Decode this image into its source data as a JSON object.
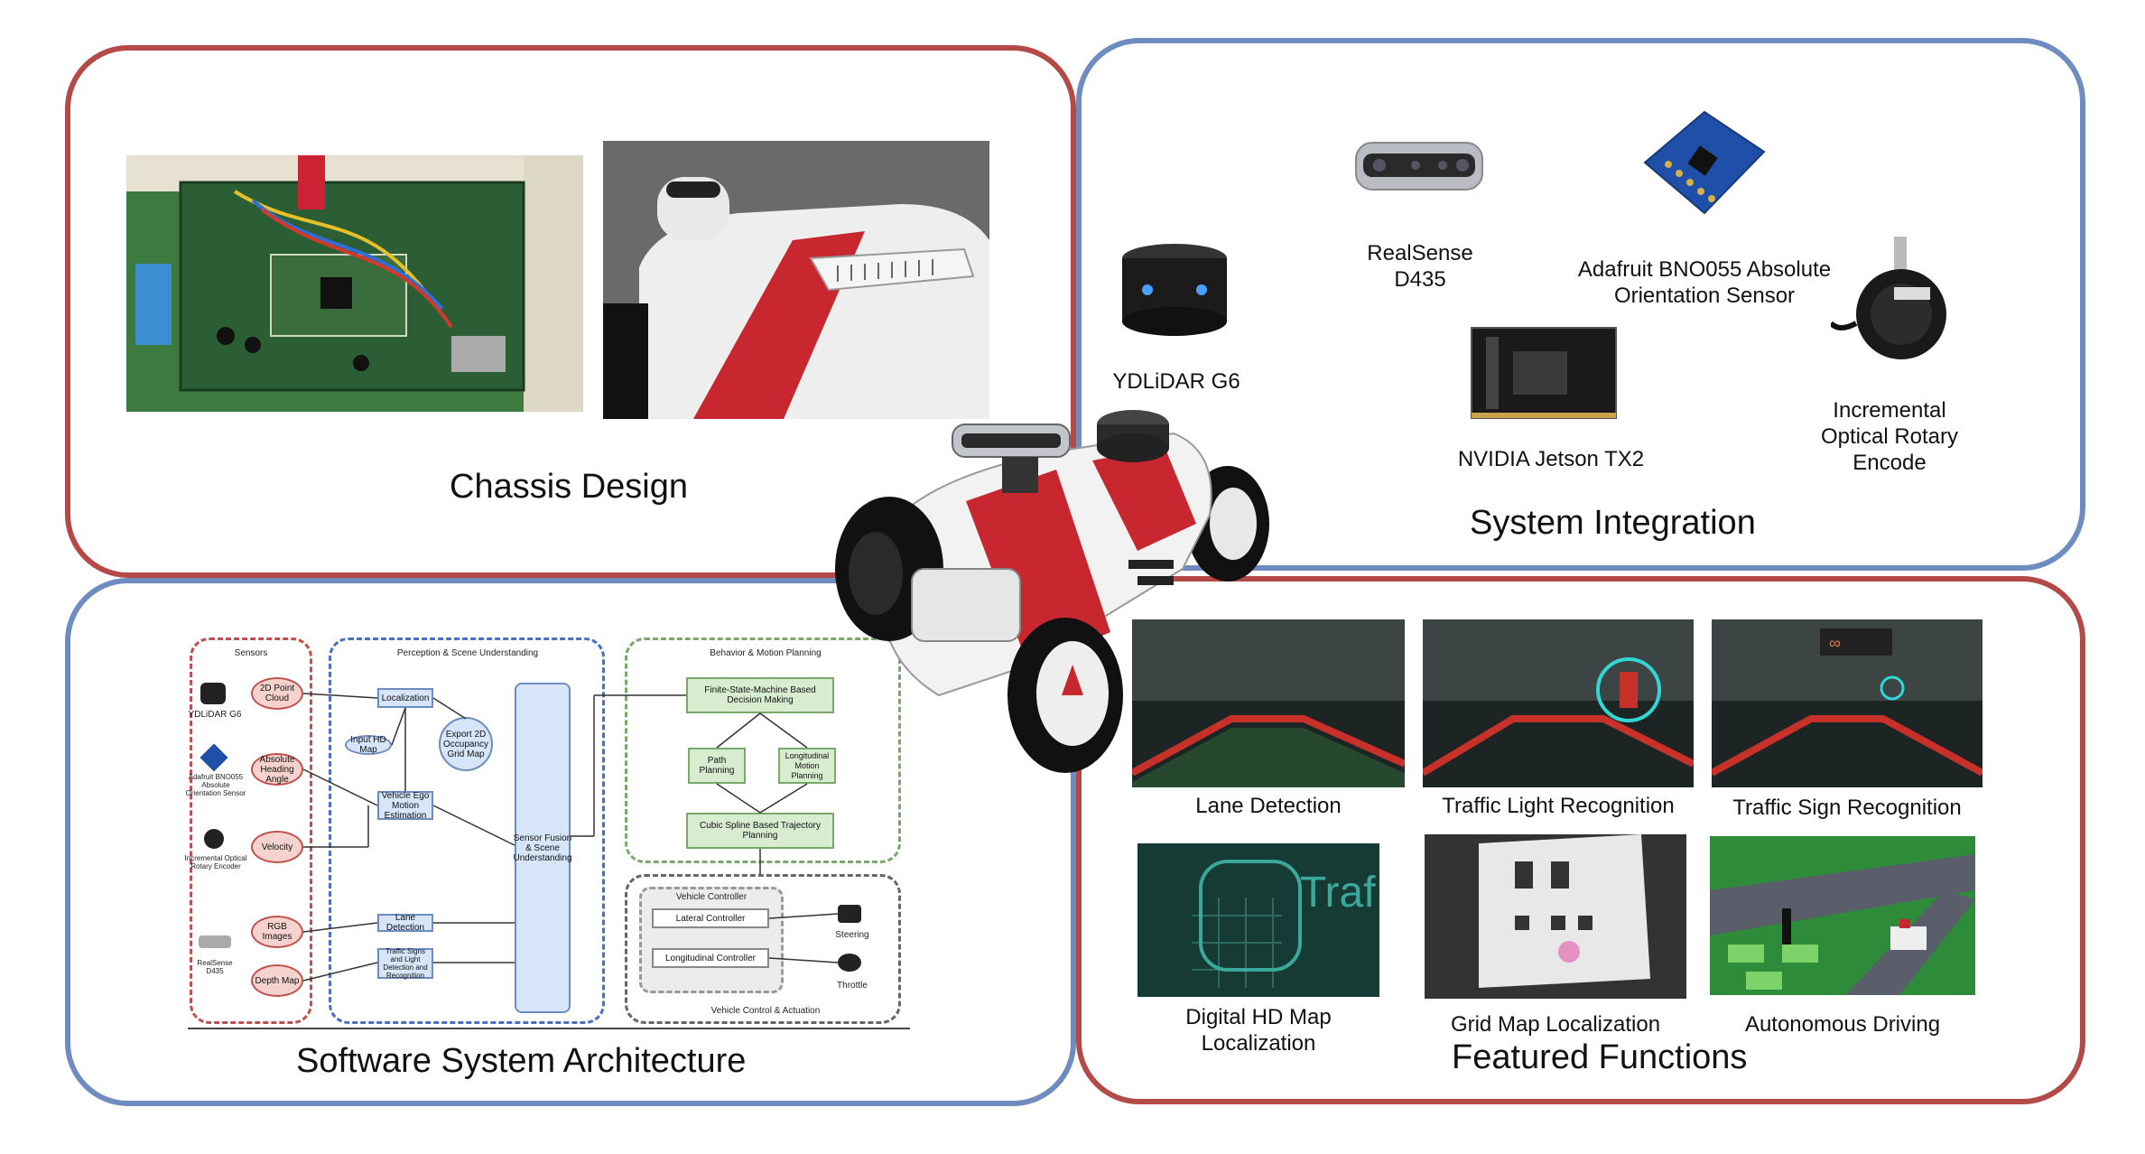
{
  "panels": {
    "chassis": {
      "title": "Chassis Design"
    },
    "system": {
      "title": "System Integration",
      "components": [
        {
          "name": "YDLiDAR G6"
        },
        {
          "name": "RealSense\nD435"
        },
        {
          "name": "Adafruit BNO055 Absolute\nOrientation Sensor"
        },
        {
          "name": "NVIDIA Jetson TX2"
        },
        {
          "name": "Incremental\nOptical Rotary\nEncode"
        }
      ]
    },
    "software": {
      "title": "Software System Architecture",
      "groups": {
        "sensors": "Sensors",
        "perception": "Perception & Scene Understanding",
        "behavior": "Behavior & Motion Planning",
        "control": "Vehicle Control & Actuation"
      },
      "sensor_items": [
        "YDLiDAR G6",
        "Adafruit BNO055 Absolute Orientation Sensor",
        "Incremental Optical Rotary Encoder",
        "RealSense D435"
      ],
      "sensor_data": [
        "2D Point Cloud",
        "Absolute Heading Angle",
        "Velocity",
        "RGB Images",
        "Depth Map"
      ],
      "perception_nodes": [
        "Localization",
        "Input HD Map",
        "Vehicle Ego Motion Estimation",
        "Export 2D Occupancy Grid Map",
        "Lane Detection",
        "Traffic Signs and Light Detection and Recognition",
        "Sensor Fusion & Scene Understanding"
      ],
      "behavior_nodes": [
        "Finite-State-Machine Based Decision Making",
        "Path Planning",
        "Longitudinal Motion Planning",
        "Cubic Spline Based Trajectory Planning"
      ],
      "control_nodes": [
        "Vehicle Controller",
        "Lateral Controller",
        "Longitudinal Controller",
        "Steering",
        "Throttle"
      ]
    },
    "featured": {
      "title": "Featured Functions",
      "items": [
        {
          "label": "Lane Detection"
        },
        {
          "label": "Traffic Light Recognition"
        },
        {
          "label": "Traffic Sign Recognition"
        },
        {
          "label": "Digital HD Map\nLocalization"
        },
        {
          "label": "Grid Map Localization"
        },
        {
          "label": "Autonomous Driving"
        }
      ]
    }
  },
  "colors": {
    "red_border": "#b34a47",
    "blue_border": "#6e8cc0",
    "robot_red": "#c8272f"
  }
}
